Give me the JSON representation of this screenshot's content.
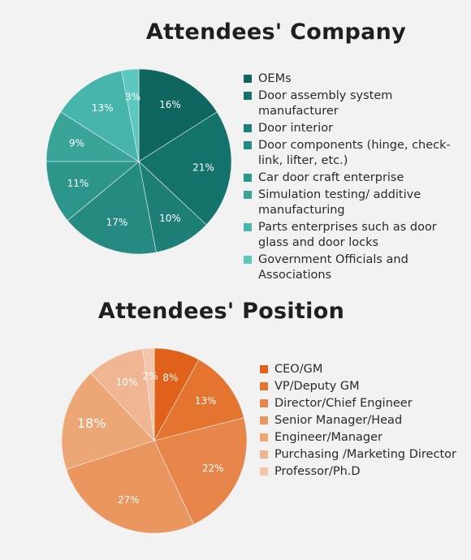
{
  "titles": {
    "company": "Attendees' Company",
    "position": "Attendees' Position"
  },
  "chart_data": [
    {
      "type": "pie",
      "title": "Attendees' Company",
      "legend_position": "right",
      "categories": [
        "OEMs",
        "Door assembly system manufacturer",
        "Door interior",
        "Door components (hinge, check- link, lifter, etc.)",
        "Car door craft enterprise",
        "Simulation testing/ additive manufacturing",
        "Parts enterprises such as door glass and door locks",
        "Government Officials and Associations"
      ],
      "values": [
        16,
        21,
        10,
        17,
        11,
        9,
        13,
        3
      ],
      "labels": [
        "16%",
        "21%",
        "10%",
        "17%",
        "11%",
        "9%",
        "13%",
        "3%"
      ],
      "colors": [
        "#0f6660",
        "#14736c",
        "#1d7f77",
        "#258a81",
        "#2e958c",
        "#3aa49b",
        "#48b5ac",
        "#5cc8c0"
      ]
    },
    {
      "type": "pie",
      "title": "Attendees' Position",
      "legend_position": "right",
      "categories": [
        "CEO/GM",
        "VP/Deputy GM",
        "Director/Chief Engineer",
        "Senior Manager/Head",
        "Engineer/Manager",
        "Purchasing /Marketing Director",
        "Professor/Ph.D"
      ],
      "values": [
        8,
        13,
        22,
        27,
        18,
        10,
        2
      ],
      "labels": [
        "8%",
        "13%",
        "22%",
        "27%",
        "18%",
        "10%",
        "2%"
      ],
      "colors": [
        "#e0621a",
        "#e47430",
        "#e8854a",
        "#eb955f",
        "#eda676",
        "#f0b593",
        "#f3c6ab"
      ]
    }
  ]
}
